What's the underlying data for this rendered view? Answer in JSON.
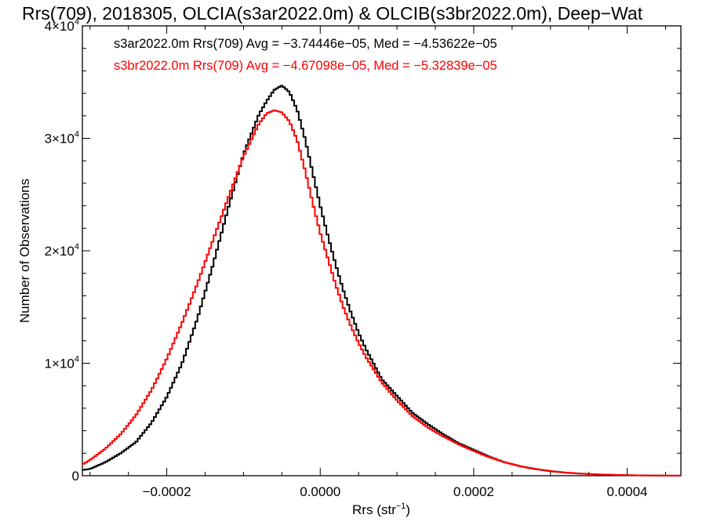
{
  "chart_data": {
    "type": "line",
    "title": "Rrs(709), 2018305, OLCIA(s3ar2022.0m) & OLCIB(s3br2022.0m), Deep−Wat",
    "xlabel": "Rrs (str",
    "xlabel_sup": "−1",
    "xlabel_end": ")",
    "ylabel": "Number of Observations",
    "xlim": [
      -0.00031,
      0.00047
    ],
    "ylim": [
      0,
      40000
    ],
    "grid": false,
    "x_ticks": [
      {
        "value": -0.0002,
        "label": "−0.0002"
      },
      {
        "value": 0.0,
        "label": "0.0000"
      },
      {
        "value": 0.0002,
        "label": "0.0002"
      },
      {
        "value": 0.0004,
        "label": "0.0004"
      }
    ],
    "y_ticks": [
      {
        "value": 0,
        "label": "0",
        "sup": ""
      },
      {
        "value": 10000,
        "label": "1×10",
        "sup": "4"
      },
      {
        "value": 20000,
        "label": "2×10",
        "sup": "4"
      },
      {
        "value": 30000,
        "label": "3×10",
        "sup": "4"
      },
      {
        "value": 40000,
        "label": "4×10",
        "sup": "4"
      }
    ],
    "legend_placement": "top-left",
    "series": [
      {
        "name": "s3ar2022.0m Rrs(709) Avg = −3.74446e−05, Med = −4.53622e−05",
        "color": "#000000",
        "x": [
          -0.00031,
          -0.0003,
          -0.00028,
          -0.00026,
          -0.00024,
          -0.00022,
          -0.0002,
          -0.00018,
          -0.00016,
          -0.00014,
          -0.00012,
          -0.0001,
          -8e-05,
          -7e-05,
          -6e-05,
          -5e-05,
          -4e-05,
          -3e-05,
          -2e-05,
          -1e-05,
          0.0,
          1e-05,
          2e-05,
          3e-05,
          4e-05,
          5e-05,
          6e-05,
          8e-05,
          0.0001,
          0.00012,
          0.00014,
          0.00016,
          0.00018,
          0.0002,
          0.00022,
          0.00024,
          0.00026,
          0.00028,
          0.0003,
          0.00032,
          0.00034,
          0.00036,
          0.00038,
          0.0004,
          0.00042,
          0.00044,
          0.00046,
          0.00047
        ],
        "y": [
          500,
          600,
          1200,
          2000,
          3000,
          4700,
          7000,
          10000,
          14000,
          18700,
          23800,
          28600,
          32100,
          33300,
          34300,
          34700,
          34100,
          32500,
          30000,
          27000,
          24000,
          21300,
          18800,
          16500,
          14500,
          12700,
          11200,
          8600,
          7100,
          5600,
          4600,
          3700,
          2900,
          2300,
          1700,
          1200,
          850,
          600,
          400,
          270,
          180,
          120,
          80,
          50,
          30,
          15,
          8,
          5
        ]
      },
      {
        "name": "s3br2022.0m Rrs(709) Avg = −4.67098e−05, Med = −5.32839e−05",
        "color": "#ff0000",
        "x": [
          -0.00031,
          -0.0003,
          -0.00028,
          -0.00026,
          -0.00024,
          -0.00022,
          -0.0002,
          -0.00018,
          -0.00016,
          -0.00014,
          -0.00012,
          -0.0001,
          -8e-05,
          -7e-05,
          -6e-05,
          -5e-05,
          -4e-05,
          -3e-05,
          -2e-05,
          -1e-05,
          0.0,
          1e-05,
          2e-05,
          3e-05,
          4e-05,
          5e-05,
          6e-05,
          8e-05,
          0.0001,
          0.00012,
          0.00014,
          0.00016,
          0.00018,
          0.0002,
          0.00022,
          0.00024,
          0.00026,
          0.00028,
          0.0003,
          0.00032,
          0.00034,
          0.00036,
          0.00038,
          0.0004,
          0.00042,
          0.00044,
          0.00046,
          0.00047
        ],
        "y": [
          1000,
          1400,
          2400,
          3700,
          5400,
          7600,
          10400,
          13600,
          17100,
          20900,
          24700,
          28400,
          31300,
          32200,
          32500,
          32300,
          31500,
          29800,
          27200,
          24300,
          21600,
          19300,
          17000,
          15000,
          13300,
          11800,
          10500,
          8300,
          6700,
          5300,
          4300,
          3500,
          2800,
          2200,
          1650,
          1200,
          850,
          600,
          420,
          280,
          190,
          120,
          80,
          50,
          30,
          15,
          8,
          5
        ]
      }
    ]
  }
}
